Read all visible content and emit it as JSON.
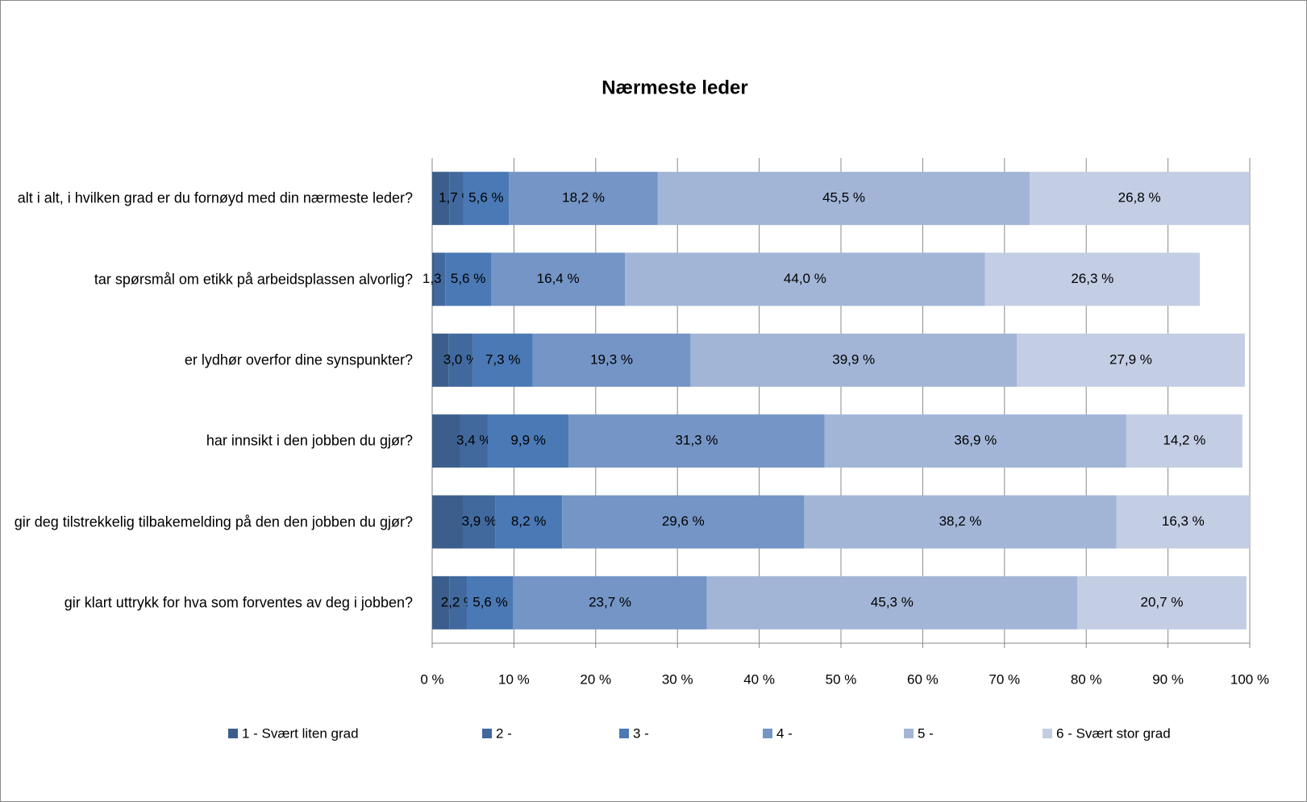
{
  "chart_data": {
    "type": "stacked_bar_horizontal",
    "title": "Nærmeste leder",
    "categories": [
      "alt i alt, i hvilken grad er du fornøyd med din nærmeste leder?",
      "tar spørsmål om etikk på arbeidsplassen alvorlig?",
      "er lydhør overfor dine synspunkter?",
      "har innsikt i den jobben du gjør?",
      "gir deg tilstrekkelig tilbakemelding på den den jobben du gjør?",
      "gir klart uttrykk for hva som forventes av deg i jobben?"
    ],
    "series": [
      {
        "name": "1 - Svært liten grad",
        "color": "#3b5e8c",
        "values": [
          2.1,
          0.3,
          2.0,
          3.4,
          3.8,
          2.1
        ]
      },
      {
        "name": "2 -",
        "color": "#41699e",
        "values": [
          1.7,
          1.3,
          3.0,
          3.4,
          3.9,
          2.2
        ],
        "value_labels": [
          "1,7 %",
          "1,3 %",
          "3,0 %",
          "3,4 %",
          "3,9 %",
          "2,2 %"
        ]
      },
      {
        "name": "3 -",
        "color": "#4a79b5",
        "values": [
          5.6,
          5.6,
          7.3,
          9.9,
          8.2,
          5.6
        ],
        "value_labels": [
          "5,6 %",
          "5,6 %",
          "7,3 %",
          "9,9 %",
          "8,2 %",
          "5,6 %"
        ]
      },
      {
        "name": "4 -",
        "color": "#7495c6",
        "values": [
          18.2,
          16.4,
          19.3,
          31.3,
          29.6,
          23.7
        ],
        "value_labels": [
          "18,2 %",
          "16,4 %",
          "19,3 %",
          "31,3 %",
          "29,6 %",
          "23,7 %"
        ]
      },
      {
        "name": "5 -",
        "color": "#a2b5d6",
        "values": [
          45.5,
          44.0,
          39.9,
          36.9,
          38.2,
          45.3
        ],
        "value_labels": [
          "45,5 %",
          "44,0 %",
          "39,9 %",
          "36,9 %",
          "38,2 %",
          "45,3 %"
        ]
      },
      {
        "name": "6 - Svært stor grad",
        "color": "#c3cde3",
        "values": [
          26.8,
          26.3,
          27.9,
          14.2,
          16.3,
          20.7
        ],
        "value_labels": [
          "26,8 %",
          "26,3 %",
          "27,9 %",
          "14,2 %",
          "16,3 %",
          "20,7 %"
        ]
      }
    ],
    "xlim": [
      0,
      100
    ],
    "xticks": [
      {
        "value": 0,
        "label": "0 %"
      },
      {
        "value": 10,
        "label": "10 %"
      },
      {
        "value": 20,
        "label": "20 %"
      },
      {
        "value": 30,
        "label": "30 %"
      },
      {
        "value": 40,
        "label": "40 %"
      },
      {
        "value": 50,
        "label": "50 %"
      },
      {
        "value": 60,
        "label": "60 %"
      },
      {
        "value": 70,
        "label": "70 %"
      },
      {
        "value": 80,
        "label": "80 %"
      },
      {
        "value": 90,
        "label": "90 %"
      },
      {
        "value": 100,
        "label": "100 %"
      }
    ],
    "grid": true,
    "legend": "bottom"
  }
}
